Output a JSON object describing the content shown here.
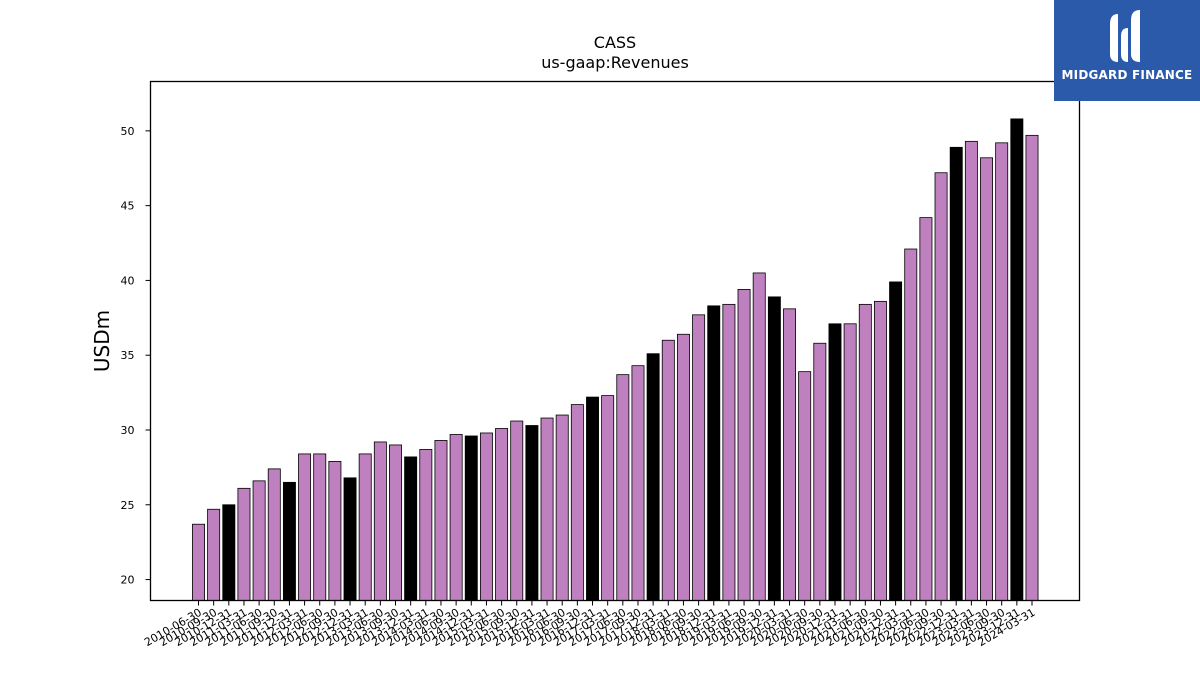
{
  "chart_data": {
    "type": "bar",
    "title": "CASS",
    "subtitle": "us-gaap:Revenues",
    "ylabel": "USDm",
    "xlabel": "",
    "ylim": [
      18.6,
      53.3
    ],
    "yticks": [
      20,
      25,
      30,
      35,
      40,
      45,
      50
    ],
    "categories": [
      "2010-06-30",
      "2010-09-30",
      "2010-12-31",
      "2011-03-31",
      "2011-06-30",
      "2011-09-30",
      "2011-12-31",
      "2012-03-31",
      "2012-06-30",
      "2012-09-30",
      "2012-12-31",
      "2013-03-31",
      "2013-06-30",
      "2013-09-30",
      "2013-12-31",
      "2014-03-31",
      "2014-06-30",
      "2014-09-30",
      "2014-12-31",
      "2015-03-31",
      "2015-06-30",
      "2015-09-30",
      "2015-12-31",
      "2016-03-31",
      "2016-06-30",
      "2016-09-30",
      "2016-12-31",
      "2017-03-31",
      "2017-06-30",
      "2017-09-30",
      "2017-12-31",
      "2018-03-31",
      "2018-06-30",
      "2018-09-30",
      "2018-12-31",
      "2019-03-31",
      "2019-06-30",
      "2019-09-30",
      "2019-12-31",
      "2020-03-31",
      "2020-06-30",
      "2020-09-30",
      "2020-12-31",
      "2021-03-31",
      "2021-06-30",
      "2021-09-30",
      "2021-12-31",
      "2022-03-31",
      "2022-06-30",
      "2022-09-30",
      "2022-12-31",
      "2023-03-31",
      "2023-06-30",
      "2023-09-30",
      "2023-12-31",
      "2024-03-31"
    ],
    "values": [
      23.7,
      24.7,
      25.0,
      26.1,
      26.6,
      27.4,
      26.5,
      28.4,
      28.4,
      27.9,
      26.8,
      28.4,
      29.2,
      29.0,
      28.2,
      28.7,
      29.3,
      29.7,
      29.6,
      29.8,
      30.1,
      30.6,
      30.3,
      30.8,
      31.0,
      31.7,
      32.2,
      32.3,
      33.7,
      34.3,
      35.1,
      36.0,
      36.4,
      37.7,
      38.3,
      38.4,
      39.4,
      40.5,
      38.9,
      38.1,
      33.9,
      35.8,
      37.1,
      37.1,
      38.4,
      38.6,
      39.9,
      42.1,
      44.2,
      47.2,
      48.9,
      49.3,
      48.2,
      49.2,
      50.8,
      49.7
    ],
    "highlight": [
      false,
      false,
      true,
      false,
      false,
      false,
      true,
      false,
      false,
      false,
      true,
      false,
      false,
      false,
      true,
      false,
      false,
      false,
      true,
      false,
      false,
      false,
      true,
      false,
      false,
      false,
      true,
      false,
      false,
      false,
      true,
      false,
      false,
      false,
      true,
      false,
      false,
      false,
      true,
      false,
      false,
      false,
      true,
      false,
      false,
      false,
      true,
      false,
      false,
      false,
      true,
      false,
      false,
      false,
      true,
      false
    ],
    "colors": {
      "bar": "#bf80bf",
      "highlight": "#000000",
      "edge": "#000000"
    },
    "grid": false,
    "legend": "none"
  },
  "logo": {
    "text": "MIDGARD FINANCE",
    "bg": "#2b5aaa",
    "icon": "midgard-logo-icon"
  }
}
